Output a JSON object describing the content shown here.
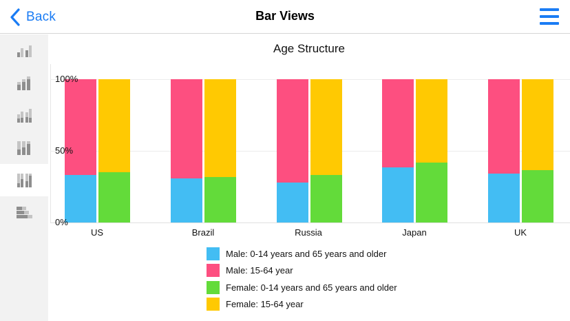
{
  "navbar": {
    "back_label": "Back",
    "title": "Bar Views",
    "back_icon": "chevron-left-icon",
    "menu_icon": "hamburger-menu-icon",
    "accent_color": "#1a7cf4"
  },
  "sidebar": {
    "items": [
      {
        "name": "clustered-bar-view",
        "icon": "clustered-bar-chart-icon",
        "active": false
      },
      {
        "name": "stacked-bar-view",
        "icon": "stacked-bar-chart-icon",
        "active": false
      },
      {
        "name": "clustered-stacked-bar-view",
        "icon": "clustered-stacked-bar-chart-icon",
        "active": false
      },
      {
        "name": "stacked-100-bar-view",
        "icon": "stacked-100-bar-chart-icon",
        "active": false
      },
      {
        "name": "clustered-stacked-100-bar-view",
        "icon": "clustered-stacked-100-bar-chart-icon",
        "active": true
      },
      {
        "name": "horizontal-stacked-bar-view",
        "icon": "horizontal-stacked-bar-chart-icon",
        "active": false
      }
    ]
  },
  "chart": {
    "title": "Age Structure",
    "y_ticks": [
      "100%",
      "50%",
      "0%"
    ],
    "categories": [
      "US",
      "Brazil",
      "Russia",
      "Japan",
      "UK"
    ],
    "legend": [
      {
        "label": "Male: 0-14 years and 65 years and older",
        "color": "#43bdf3"
      },
      {
        "label": "Male: 15-64 year",
        "color": "#fd4f80"
      },
      {
        "label": "Female: 0-14 years and 65 years and older",
        "color": "#63db3a"
      },
      {
        "label": "Female: 15-64 year",
        "color": "#ffc902"
      }
    ]
  },
  "chart_data": {
    "type": "bar",
    "subtype": "clustered-stacked-100-percent",
    "title": "Age Structure",
    "xlabel": "",
    "ylabel": "",
    "ylim": [
      0,
      100
    ],
    "y_tick_labels": [
      "0%",
      "50%",
      "100%"
    ],
    "grid": true,
    "legend_position": "bottom",
    "categories": [
      "US",
      "Brazil",
      "Russia",
      "Japan",
      "UK"
    ],
    "stacks": [
      {
        "stack": "Male",
        "series": [
          {
            "name": "Male: 0-14 years and 65 years and older",
            "color": "#43bdf3",
            "values": [
              33,
              31,
              28,
              38.5,
              34
            ]
          },
          {
            "name": "Male: 15-64 year",
            "color": "#fd4f80",
            "values": [
              67,
              69,
              72,
              61.5,
              66
            ]
          }
        ]
      },
      {
        "stack": "Female",
        "series": [
          {
            "name": "Female: 0-14 years and 65 years and older",
            "color": "#63db3a",
            "values": [
              35,
              31.5,
              33,
              42,
              36.5
            ]
          },
          {
            "name": "Female: 15-64 year",
            "color": "#ffc902",
            "values": [
              65,
              68.5,
              67,
              58,
              63.5
            ]
          }
        ]
      }
    ]
  }
}
